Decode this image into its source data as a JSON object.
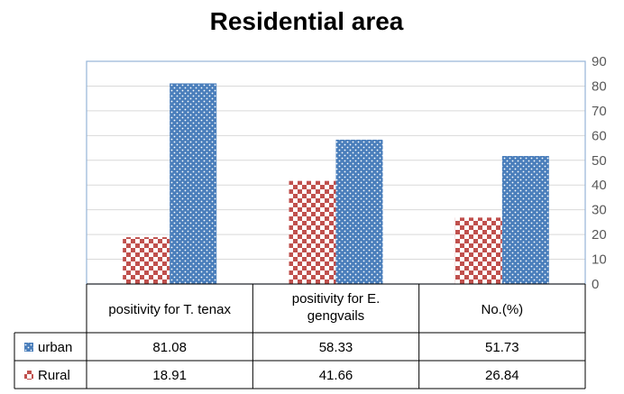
{
  "chart_data": {
    "type": "bar",
    "title": "Residential area",
    "categories": [
      "positivity for T. tenax",
      "positivity for E. gengvails",
      "No.(%)"
    ],
    "series": [
      {
        "name": "urban",
        "values": [
          81.08,
          58.33,
          51.73
        ],
        "color": "#4a7ebb",
        "pattern": "dots"
      },
      {
        "name": "Rural",
        "values": [
          18.91,
          41.66,
          26.84
        ],
        "color": "#c0504d",
        "pattern": "checker"
      }
    ],
    "ylim": [
      0,
      90
    ],
    "yticks": [
      0,
      10,
      20,
      30,
      40,
      50,
      60,
      70,
      80,
      90
    ],
    "y_axis_position": "right",
    "grid": true,
    "legend": "data-table",
    "data_table": {
      "headers": [
        "positivity for T. tenax",
        "positivity for E. gengvails",
        "No.(%)"
      ],
      "rows": [
        {
          "series": "urban",
          "cells": [
            "81.08",
            "58.33",
            "51.73"
          ]
        },
        {
          "series": "Rural",
          "cells": [
            "18.91",
            "41.66",
            "26.84"
          ]
        }
      ]
    }
  }
}
